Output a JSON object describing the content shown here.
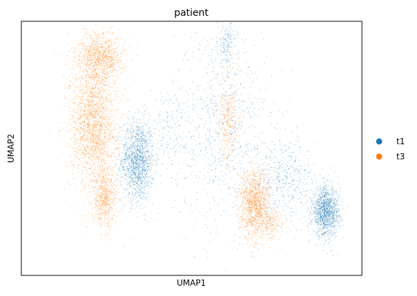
{
  "chart_data": {
    "type": "scatter",
    "title": "patient",
    "xlabel": "UMAP1",
    "ylabel": "UMAP2",
    "ticks": "none",
    "grid": false,
    "legend": {
      "placement": "right",
      "entries": [
        "t1",
        "t3"
      ]
    },
    "series": [
      {
        "name": "t1",
        "color": "#1f77b4",
        "clusters": [
          {
            "cx": 0.385,
            "cy": 0.34,
            "sx": 0.12,
            "sy": 0.2,
            "n": 1500
          },
          {
            "cx": 1.0,
            "cy": 0.5,
            "sx": 0.35,
            "sy": 0.48,
            "n": 900
          },
          {
            "cx": 1.03,
            "cy": 0.92,
            "sx": 0.07,
            "sy": 0.12,
            "n": 180
          },
          {
            "cx": 1.74,
            "cy": 0.09,
            "sx": 0.1,
            "sy": 0.12,
            "n": 1300
          },
          {
            "cx": 1.45,
            "cy": 0.25,
            "sx": 0.22,
            "sy": 0.2,
            "n": 500
          },
          {
            "cx": 0.62,
            "cy": 0.5,
            "sx": 0.12,
            "sy": 0.18,
            "n": 150
          }
        ]
      },
      {
        "name": "t3",
        "color": "#ff7f0e",
        "clusters": [
          {
            "cx": 0.07,
            "cy": 0.52,
            "sx": 0.17,
            "sy": 0.32,
            "n": 2300
          },
          {
            "cx": 0.12,
            "cy": 0.85,
            "sx": 0.17,
            "sy": 0.12,
            "n": 1000
          },
          {
            "cx": 0.15,
            "cy": 0.15,
            "sx": 0.09,
            "sy": 0.14,
            "n": 650
          },
          {
            "cx": 1.23,
            "cy": 0.13,
            "sx": 0.11,
            "sy": 0.17,
            "n": 1300
          },
          {
            "cx": 1.04,
            "cy": 0.55,
            "sx": 0.07,
            "sy": 0.22,
            "n": 350
          },
          {
            "cx": 1.35,
            "cy": 0.03,
            "sx": 0.09,
            "sy": 0.08,
            "n": 200
          }
        ]
      }
    ]
  }
}
